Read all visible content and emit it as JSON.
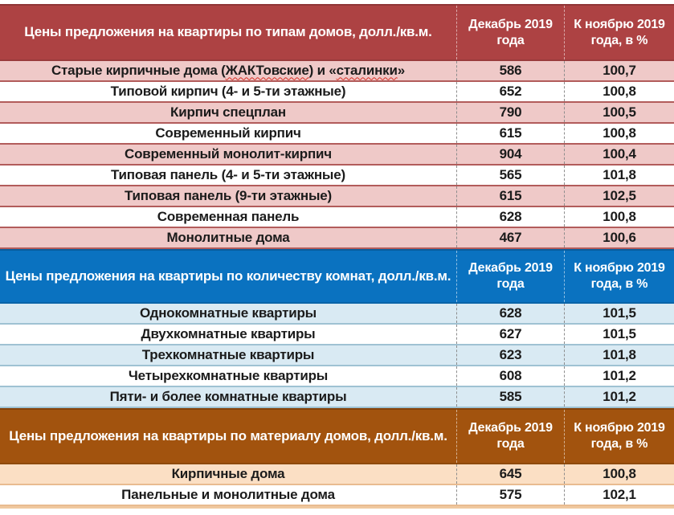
{
  "colors": {
    "section1_header_bg": "#AD4243",
    "section1_row_alt_bg": "#EFC9C8",
    "section2_header_bg": "#0A72C0",
    "section2_row_alt_bg": "#D9EAF3",
    "section3_header_bg": "#A2530E",
    "section3_row_alt_bg": "#FBDFC4",
    "header_text": "#FFFFFF",
    "body_text": "#1B1B1B"
  },
  "columns": {
    "period": "Декабрь 2019 года",
    "index": "К ноябрю 2019 года, в %"
  },
  "sections": [
    {
      "title": "Цены предложения на квартиры по типам домов, долл./кв.м.",
      "rows": [
        {
          "label": "Старые кирпичные дома (ЖАКТовские) и «сталинки»",
          "label_parts": [
            "Старые кирпичные дома (",
            "ЖАКТовские",
            ") и «",
            "сталинки",
            "»"
          ],
          "dec": "586",
          "idx": "100,7"
        },
        {
          "label": "Типовой кирпич (4- и 5-ти этажные)",
          "dec": "652",
          "idx": "100,8"
        },
        {
          "label": "Кирпич спецплан",
          "dec": "790",
          "idx": "100,5"
        },
        {
          "label": "Современный кирпич",
          "dec": "615",
          "idx": "100,8"
        },
        {
          "label": "Современный монолит-кирпич",
          "dec": "904",
          "idx": "100,4"
        },
        {
          "label": "Типовая панель (4- и 5-ти этажные)",
          "dec": "565",
          "idx": "101,8"
        },
        {
          "label": "Типовая панель (9-ти этажные)",
          "dec": "615",
          "idx": "102,5"
        },
        {
          "label": "Современная панель",
          "dec": "628",
          "idx": "100,8"
        },
        {
          "label": "Монолитные дома",
          "dec": "467",
          "idx": "100,6"
        }
      ]
    },
    {
      "title": "Цены предложения на квартиры по количеству комнат, долл./кв.м.",
      "rows": [
        {
          "label": "Однокомнатные квартиры",
          "dec": "628",
          "idx": "101,5"
        },
        {
          "label": "Двухкомнатные квартиры",
          "dec": "627",
          "idx": "101,5"
        },
        {
          "label": "Трехкомнатные квартиры",
          "dec": "623",
          "idx": "101,8"
        },
        {
          "label": "Четырехкомнатные квартиры",
          "dec": "608",
          "idx": "101,2"
        },
        {
          "label": "Пяти- и более комнатные квартиры",
          "dec": "585",
          "idx": "101,2"
        }
      ]
    },
    {
      "title": "Цены предложения на квартиры по материалу домов, долл./кв.м.",
      "rows": [
        {
          "label": "Кирпичные дома",
          "dec": "645",
          "idx": "100,8"
        },
        {
          "label": "Панельные и монолитные дома",
          "dec": "575",
          "idx": "102,1"
        }
      ]
    }
  ],
  "chart_data": [
    {
      "type": "table",
      "title": "Цены предложения на квартиры по типам домов, долл./кв.м.",
      "columns": [
        "Декабрь 2019 года",
        "К ноябрю 2019 года, в %"
      ],
      "rows": [
        [
          "Старые кирпичные дома (ЖАКТовские) и «сталинки»",
          586,
          100.7
        ],
        [
          "Типовой кирпич (4- и 5-ти этажные)",
          652,
          100.8
        ],
        [
          "Кирпич спецплан",
          790,
          100.5
        ],
        [
          "Современный кирпич",
          615,
          100.8
        ],
        [
          "Современный монолит-кирпич",
          904,
          100.4
        ],
        [
          "Типовая панель (4- и 5-ти этажные)",
          565,
          101.8
        ],
        [
          "Типовая панель (9-ти этажные)",
          615,
          102.5
        ],
        [
          "Современная панель",
          628,
          100.8
        ],
        [
          "Монолитные дома",
          467,
          100.6
        ]
      ]
    },
    {
      "type": "table",
      "title": "Цены предложения на квартиры по количеству комнат, долл./кв.м.",
      "columns": [
        "Декабрь 2019 года",
        "К ноябрю 2019 года, в %"
      ],
      "rows": [
        [
          "Однокомнатные квартиры",
          628,
          101.5
        ],
        [
          "Двухкомнатные квартиры",
          627,
          101.5
        ],
        [
          "Трехкомнатные квартиры",
          623,
          101.8
        ],
        [
          "Четырехкомнатные квартиры",
          608,
          101.2
        ],
        [
          "Пяти- и более комнатные квартиры",
          585,
          101.2
        ]
      ]
    },
    {
      "type": "table",
      "title": "Цены предложения на квартиры по материалу домов, долл./кв.м.",
      "columns": [
        "Декабрь 2019 года",
        "К ноябрю 2019 года, в %"
      ],
      "rows": [
        [
          "Кирпичные дома",
          645,
          100.8
        ],
        [
          "Панельные и монолитные дома",
          575,
          102.1
        ]
      ]
    }
  ]
}
